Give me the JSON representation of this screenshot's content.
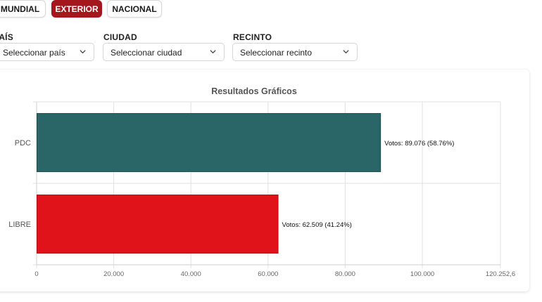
{
  "tabs": [
    {
      "label": "MUNDIAL",
      "active": false
    },
    {
      "label": "EXTERIOR",
      "active": true
    },
    {
      "label": "NACIONAL",
      "active": false
    }
  ],
  "filters": {
    "country": {
      "label": "PAÍS",
      "value": "Seleccionar país"
    },
    "city": {
      "label": "CIUDAD",
      "value": "Seleccionar ciudad"
    },
    "venue": {
      "label": "RECINTO",
      "value": "Seleccionar recinto"
    }
  },
  "colors": {
    "accent": "#a3171d",
    "pdc": "#2a6668",
    "libre": "#e0121a"
  },
  "chart_data": {
    "type": "bar",
    "orientation": "horizontal",
    "title": "Resultados Gráficos",
    "categories": [
      "PDC",
      "LIBRE"
    ],
    "values": [
      89076,
      62509
    ],
    "value_labels": [
      "Votos: 89.076 (58.76%)",
      "Votos: 62.509 (41.24%)"
    ],
    "xlim": [
      0,
      120252.6
    ],
    "xticks": [
      0,
      20000,
      40000,
      60000,
      80000,
      100000,
      120252.6
    ],
    "xtick_labels": [
      "0",
      "20.000",
      "40.000",
      "60.000",
      "80.000",
      "100.000",
      "120.252,6"
    ],
    "grid": true
  }
}
